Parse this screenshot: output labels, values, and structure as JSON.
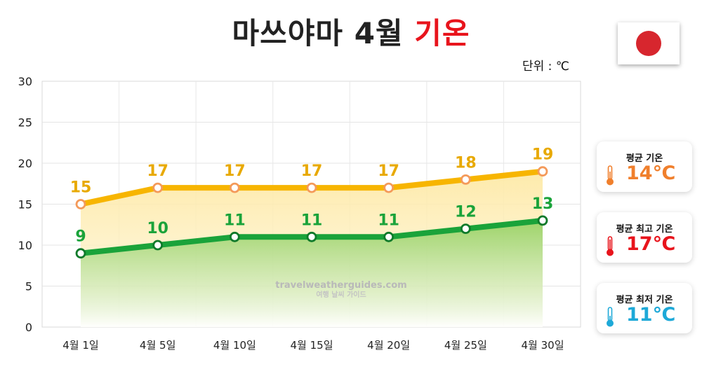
{
  "header": {
    "title_main": "마쓰야마 4월",
    "title_accent": "기온",
    "unit": "단위 : ℃"
  },
  "flag": {
    "icon": "japan-flag-icon",
    "accent": "#d7262e"
  },
  "summary": [
    {
      "label": "평균 기온",
      "value": "14℃",
      "color": "#f07f2c",
      "icon": "thermometer-icon"
    },
    {
      "label": "평균 최고 기온",
      "value": "17℃",
      "color": "#e8141c",
      "icon": "thermometer-icon"
    },
    {
      "label": "평균 최저 기온",
      "value": "11℃",
      "color": "#1ea9d8",
      "icon": "thermometer-icon"
    }
  ],
  "watermark": {
    "line1": "travelweatherguides.com",
    "line2": "여행 날씨 가이드"
  },
  "chart_data": {
    "type": "line",
    "categories": [
      "4월 1일",
      "4월 5일",
      "4월 10일",
      "4월 15일",
      "4월 20일",
      "4월 25일",
      "4월 30일"
    ],
    "series": [
      {
        "values": [
          15,
          17,
          17,
          17,
          17,
          18,
          19
        ],
        "color": "#f7b500",
        "label_color": "#e8a900"
      },
      {
        "values": [
          9,
          10,
          11,
          11,
          11,
          12,
          13
        ],
        "color": "#1aa33a",
        "label_color": "#1aa33a"
      }
    ],
    "ylim": [
      0,
      30
    ],
    "yticks": [
      0,
      5,
      10,
      15,
      20,
      25,
      30
    ],
    "grid": true
  }
}
